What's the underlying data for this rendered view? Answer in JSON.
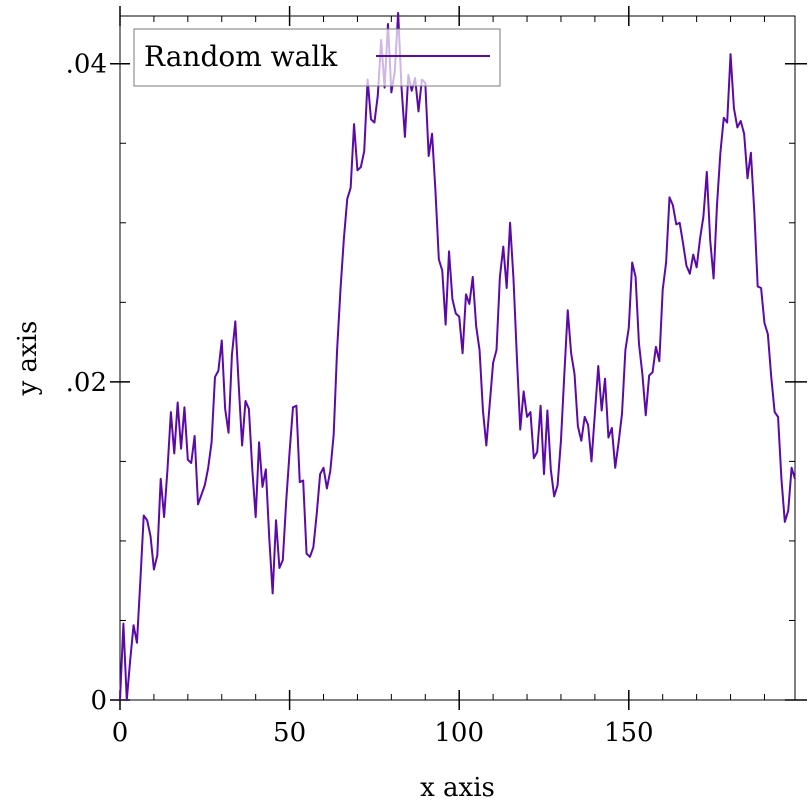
{
  "chart_data": {
    "type": "line",
    "title": "",
    "xlabel": "x axis",
    "ylabel": "y axis",
    "xlim": [
      0,
      199
    ],
    "ylim": [
      0,
      0.043
    ],
    "x_ticks": [
      0,
      50,
      100,
      150
    ],
    "x_tick_labels": [
      "0",
      "50",
      "100",
      "150"
    ],
    "y_ticks": [
      0,
      0.02,
      0.04
    ],
    "y_tick_labels": [
      "0",
      ".02",
      ".04"
    ],
    "grid": false,
    "legend": {
      "position": "top-left",
      "entries": [
        "Random walk"
      ]
    },
    "series": [
      {
        "name": "Random walk",
        "color": "#5b0aa8",
        "x": [
          0,
          1,
          2,
          3,
          4,
          5,
          6,
          7,
          8,
          9,
          10,
          11,
          12,
          13,
          14,
          15,
          16,
          17,
          18,
          19,
          20,
          21,
          22,
          23,
          24,
          25,
          26,
          27,
          28,
          29,
          30,
          31,
          32,
          33,
          34,
          35,
          36,
          37,
          38,
          39,
          40,
          41,
          42,
          43,
          44,
          45,
          46,
          47,
          48,
          49,
          50,
          51,
          52,
          53,
          54,
          55,
          56,
          57,
          58,
          59,
          60,
          61,
          62,
          63,
          64,
          65,
          66,
          67,
          68,
          69,
          70,
          71,
          72,
          73,
          74,
          75,
          76,
          77,
          78,
          79,
          80,
          81,
          82,
          83,
          84,
          85,
          86,
          87,
          88,
          89,
          90,
          91,
          92,
          93,
          94,
          95,
          96,
          97,
          98,
          99,
          100,
          101,
          102,
          103,
          104,
          105,
          106,
          107,
          108,
          109,
          110,
          111,
          112,
          113,
          114,
          115,
          116,
          117,
          118,
          119,
          120,
          121,
          122,
          123,
          124,
          125,
          126,
          127,
          128,
          129,
          130,
          131,
          132,
          133,
          134,
          135,
          136,
          137,
          138,
          139,
          140,
          141,
          142,
          143,
          144,
          145,
          146,
          147,
          148,
          149,
          150,
          151,
          152,
          153,
          154,
          155,
          156,
          157,
          158,
          159,
          160,
          161,
          162,
          163,
          164,
          165,
          166,
          167,
          168,
          169,
          170,
          171,
          172,
          173,
          174,
          175,
          176,
          177,
          178,
          179,
          180,
          181,
          182,
          183,
          184,
          185,
          186,
          187,
          188,
          189,
          190,
          191,
          192,
          193,
          194,
          195,
          196,
          197,
          198,
          199
        ],
        "y": [
          0,
          0.0048,
          0,
          0.0025,
          0.0047,
          0.0036,
          0.0075,
          0.0116,
          0.0113,
          0.0103,
          0.0082,
          0.0091,
          0.0139,
          0.0115,
          0.0145,
          0.0181,
          0.0155,
          0.0187,
          0.0158,
          0.0184,
          0.0151,
          0.0149,
          0.0166,
          0.0123,
          0.0129,
          0.0135,
          0.0146,
          0.0162,
          0.0203,
          0.0207,
          0.0226,
          0.0183,
          0.0168,
          0.0217,
          0.0238,
          0.0198,
          0.016,
          0.0188,
          0.0183,
          0.0145,
          0.0115,
          0.0162,
          0.0134,
          0.0145,
          0.0102,
          0.0067,
          0.0113,
          0.0083,
          0.0088,
          0.0125,
          0.0156,
          0.0184,
          0.0185,
          0.0137,
          0.0138,
          0.0092,
          0.009,
          0.0096,
          0.0117,
          0.0142,
          0.0146,
          0.0133,
          0.0144,
          0.0167,
          0.022,
          0.0258,
          0.029,
          0.0315,
          0.0322,
          0.0362,
          0.0333,
          0.0335,
          0.0345,
          0.039,
          0.0365,
          0.0363,
          0.038,
          0.0415,
          0.0385,
          0.0425,
          0.0382,
          0.0395,
          0.0432,
          0.0385,
          0.0354,
          0.0393,
          0.0383,
          0.0391,
          0.037,
          0.039,
          0.0388,
          0.0342,
          0.0356,
          0.032,
          0.0277,
          0.027,
          0.0236,
          0.0282,
          0.0252,
          0.0243,
          0.0241,
          0.0218,
          0.0255,
          0.0249,
          0.0266,
          0.0235,
          0.022,
          0.0182,
          0.016,
          0.0186,
          0.0212,
          0.022,
          0.0266,
          0.0285,
          0.0259,
          0.03,
          0.0265,
          0.0216,
          0.017,
          0.0194,
          0.0178,
          0.0181,
          0.0152,
          0.0156,
          0.0185,
          0.0142,
          0.0182,
          0.0145,
          0.0128,
          0.0135,
          0.0163,
          0.0205,
          0.0245,
          0.0218,
          0.0205,
          0.0172,
          0.0163,
          0.0178,
          0.0173,
          0.015,
          0.018,
          0.021,
          0.0182,
          0.0202,
          0.0165,
          0.0171,
          0.0146,
          0.0162,
          0.018,
          0.022,
          0.0234,
          0.0275,
          0.0266,
          0.0224,
          0.0205,
          0.0179,
          0.0204,
          0.0206,
          0.0222,
          0.0213,
          0.0258,
          0.0275,
          0.0316,
          0.0311,
          0.0299,
          0.03,
          0.0287,
          0.0273,
          0.0268,
          0.028,
          0.0272,
          0.029,
          0.0304,
          0.0332,
          0.0289,
          0.0265,
          0.0311,
          0.0344,
          0.0366,
          0.0363,
          0.0406,
          0.0372,
          0.036,
          0.0364,
          0.0356,
          0.0328,
          0.0344,
          0.0307,
          0.026,
          0.0259,
          0.0237,
          0.023,
          0.0203,
          0.0181,
          0.0178,
          0.0139,
          0.0112,
          0.0119,
          0.0146,
          0.0139
        ]
      }
    ]
  }
}
